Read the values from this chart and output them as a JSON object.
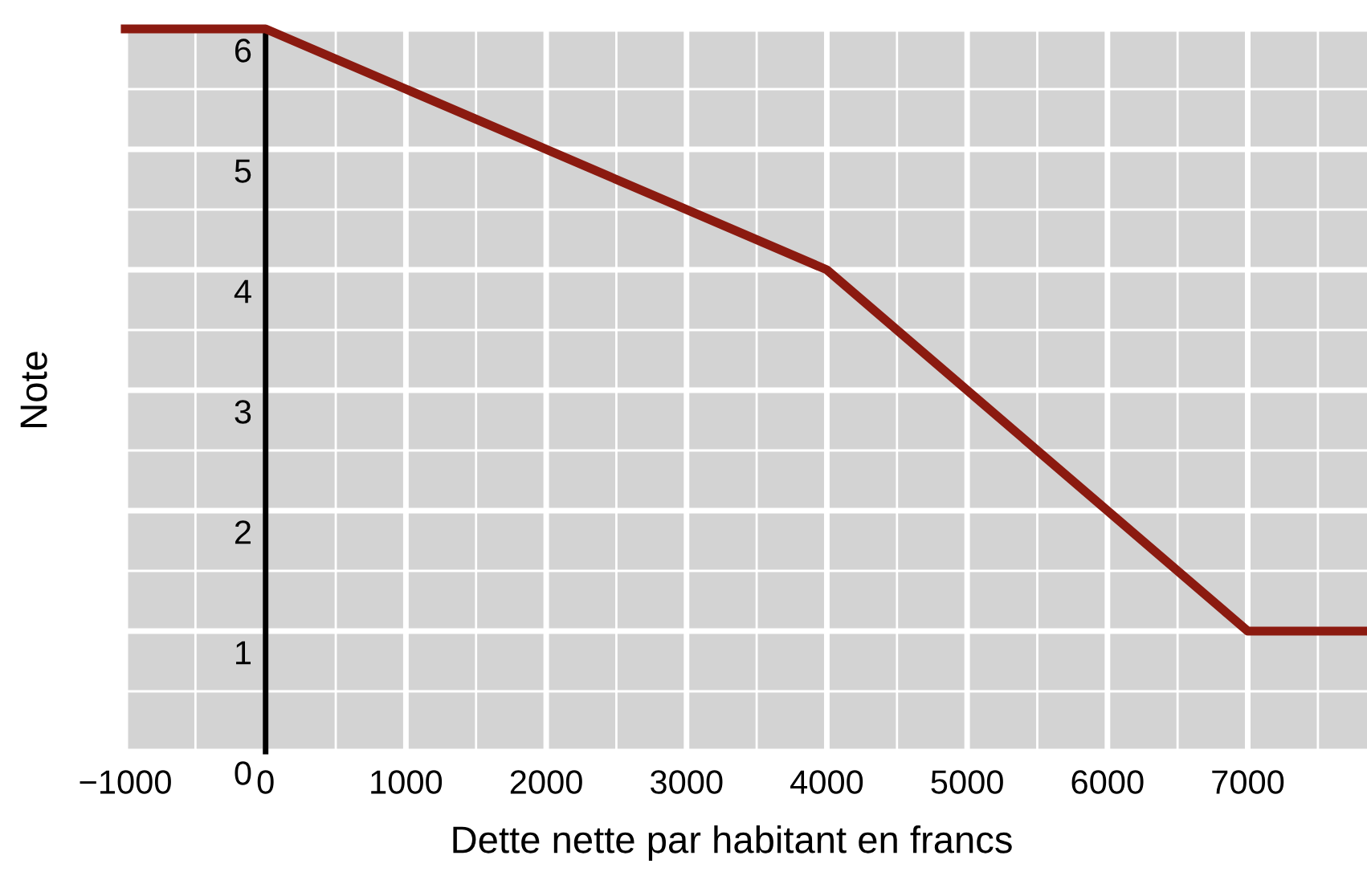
{
  "chart_data": {
    "type": "line",
    "xlabel": "Dette nette par habitant en francs",
    "ylabel": "Note",
    "x": [
      -1000,
      0,
      4000,
      7000,
      7850
    ],
    "series": [
      {
        "color": "#8b1a10",
        "values": [
          6,
          6,
          4,
          1,
          1
        ]
      }
    ],
    "xlim": [
      -1000,
      7850
    ],
    "ylim": [
      0,
      6
    ],
    "xticks": [
      {
        "value": -1000,
        "label": "−1000"
      },
      0,
      1000,
      2000,
      3000,
      4000,
      5000,
      6000,
      7000
    ],
    "yticks": [
      0,
      1,
      2,
      3,
      4,
      5,
      6
    ],
    "grid": true,
    "marker": "none",
    "line_style": "solid"
  }
}
